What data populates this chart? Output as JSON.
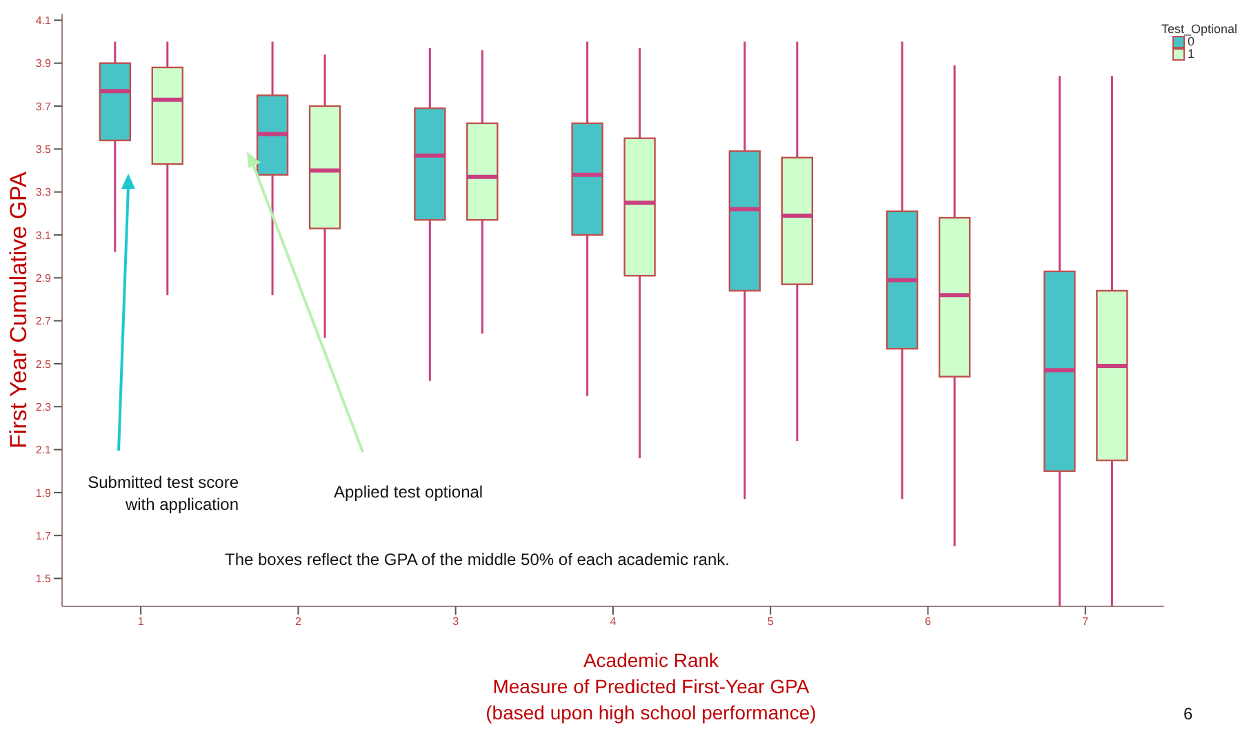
{
  "chart_data": {
    "type": "box",
    "xlabel": "Academic Rank\nMeasure of Predicted First-Year GPA\n(based upon high school performance)",
    "ylabel": "First Year Cumulative GPA",
    "legend_title": "Test_Optional",
    "legend": "top right",
    "categories": [
      "1",
      "2",
      "3",
      "4",
      "5",
      "6",
      "7"
    ],
    "ylim": [
      1.37,
      4.13
    ],
    "yticks": [
      1.5,
      1.7,
      1.9,
      2.1,
      2.3,
      2.5,
      2.7,
      2.9,
      3.1,
      3.3,
      3.5,
      3.7,
      3.9,
      4.1
    ],
    "series": [
      {
        "name": "0",
        "color": "#48c4c8",
        "boxes": [
          {
            "low": 3.02,
            "q1": 3.54,
            "median": 3.77,
            "q3": 3.9,
            "high": 4.0
          },
          {
            "low": 2.82,
            "q1": 3.38,
            "median": 3.57,
            "q3": 3.75,
            "high": 4.0
          },
          {
            "low": 2.42,
            "q1": 3.17,
            "median": 3.47,
            "q3": 3.69,
            "high": 3.97
          },
          {
            "low": 2.35,
            "q1": 3.1,
            "median": 3.38,
            "q3": 3.62,
            "high": 4.0
          },
          {
            "low": 1.87,
            "q1": 2.84,
            "median": 3.22,
            "q3": 3.49,
            "high": 4.0
          },
          {
            "low": 1.87,
            "q1": 2.57,
            "median": 2.89,
            "q3": 3.21,
            "high": 4.0
          },
          {
            "low": 1.37,
            "q1": 2.0,
            "median": 2.47,
            "q3": 2.93,
            "high": 3.84
          }
        ]
      },
      {
        "name": "1",
        "color": "#ccffcc",
        "boxes": [
          {
            "low": 2.82,
            "q1": 3.43,
            "median": 3.73,
            "q3": 3.88,
            "high": 4.0
          },
          {
            "low": 2.62,
            "q1": 3.13,
            "median": 3.4,
            "q3": 3.7,
            "high": 3.94
          },
          {
            "low": 2.64,
            "q1": 3.17,
            "median": 3.37,
            "q3": 3.62,
            "high": 3.96
          },
          {
            "low": 2.06,
            "q1": 2.91,
            "median": 3.25,
            "q3": 3.55,
            "high": 3.97
          },
          {
            "low": 2.14,
            "q1": 2.87,
            "median": 3.19,
            "q3": 3.46,
            "high": 4.0
          },
          {
            "low": 1.65,
            "q1": 2.44,
            "median": 2.82,
            "q3": 3.18,
            "high": 3.89
          },
          {
            "low": 1.37,
            "q1": 2.05,
            "median": 2.49,
            "q3": 2.84,
            "high": 3.84
          }
        ]
      }
    ],
    "annotations": [
      "Submitted test score\nwith application",
      "Applied test optional",
      "The boxes reflect the GPA of the middle 50% of each academic rank.",
      "6"
    ]
  }
}
